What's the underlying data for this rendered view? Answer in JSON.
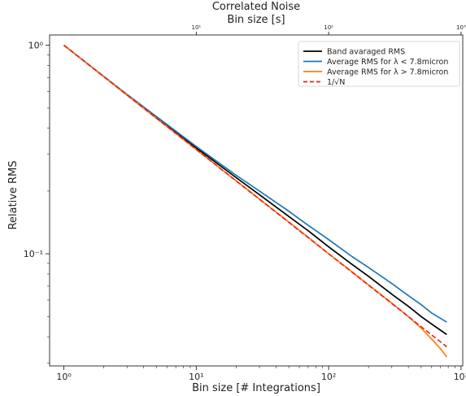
{
  "chart_data": {
    "type": "line",
    "title": "Correlated Noise",
    "top_axis": {
      "label": "Bin size [s]",
      "scale": "log",
      "tick_values": [
        10,
        100,
        1000
      ],
      "tick_labels": [
        "10¹",
        "10²",
        "10³"
      ]
    },
    "xlabel": "Bin size [# Integrations]",
    "ylabel": "Relative RMS",
    "xscale": "log",
    "yscale": "log",
    "xlim": [
      0.78,
      1030
    ],
    "ylim": [
      0.029,
      1.12
    ],
    "x_ticks": {
      "values": [
        1,
        10,
        100,
        1000
      ],
      "labels": [
        "10⁰",
        "10¹",
        "10²",
        "10³"
      ]
    },
    "y_ticks": {
      "values": [
        0.1,
        1
      ],
      "labels": [
        "10⁻¹",
        "10⁰"
      ]
    },
    "grid": false,
    "legend_position": "top-right",
    "series": [
      {
        "name": "Band avaraged RMS",
        "color": "#000000",
        "style": "solid",
        "x": [
          1,
          2,
          3,
          5,
          10,
          20,
          30,
          50,
          70,
          100,
          150,
          200,
          300,
          400,
          500,
          600,
          700,
          780
        ],
        "y": [
          1.0,
          0.707,
          0.578,
          0.45,
          0.322,
          0.232,
          0.192,
          0.151,
          0.129,
          0.108,
          0.089,
          0.078,
          0.064,
          0.056,
          0.05,
          0.046,
          0.043,
          0.041
        ]
      },
      {
        "name": "Average RMS for λ < 7.8micron",
        "color": "#1f77b4",
        "style": "solid",
        "x": [
          1,
          2,
          3,
          5,
          10,
          20,
          30,
          50,
          70,
          100,
          150,
          200,
          300,
          400,
          500,
          600,
          700,
          780
        ],
        "y": [
          1.0,
          0.709,
          0.581,
          0.455,
          0.327,
          0.238,
          0.2,
          0.16,
          0.137,
          0.117,
          0.097,
          0.086,
          0.072,
          0.063,
          0.057,
          0.052,
          0.049,
          0.047
        ]
      },
      {
        "name": "Average RMS for λ > 7.8micron",
        "color": "#ff7f0e",
        "style": "solid",
        "x": [
          1,
          2,
          3,
          5,
          10,
          20,
          30,
          50,
          70,
          100,
          150,
          200,
          300,
          400,
          500,
          600,
          700,
          780
        ],
        "y": [
          1.0,
          0.707,
          0.576,
          0.446,
          0.316,
          0.224,
          0.183,
          0.142,
          0.12,
          0.1,
          0.082,
          0.071,
          0.058,
          0.05,
          0.044,
          0.039,
          0.035,
          0.032
        ]
      },
      {
        "name": "1/√N",
        "color": "#e8221b",
        "style": "dashed",
        "x": [
          1,
          780
        ],
        "y": [
          1.0,
          0.0358
        ]
      }
    ]
  }
}
